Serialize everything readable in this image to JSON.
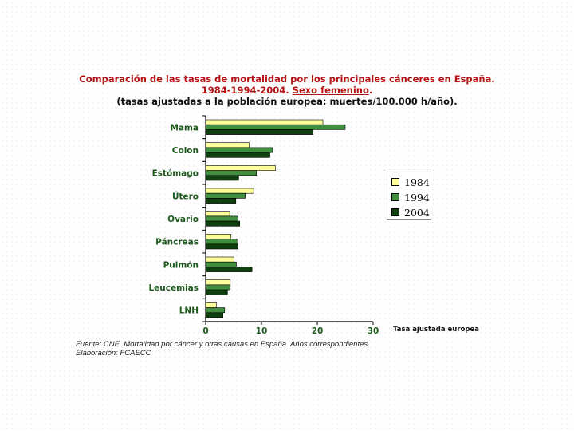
{
  "title": {
    "line1": "Comparación de las tasas de mortalidad por los principales cánceres en España.",
    "line2_prefix": "1984-1994-2004. ",
    "line2_underlined": "Sexo femenino",
    "line2_suffix": ".",
    "line3": "(tasas ajustadas a la población europea: muertes/100.000 h/año)."
  },
  "source": {
    "line1": "Fuente: CNE. Mortalidad por cáncer y otras causas en España. Años correspondientes",
    "line2": "Elaboración: FCAECC"
  },
  "colors": {
    "title_red": "#b41414",
    "label_green": "#1e5a1e",
    "s1984": "#ffff99",
    "s1994": "#3f8f3f",
    "s2004": "#0f3f0f"
  },
  "chart_data": {
    "type": "bar",
    "orientation": "horizontal",
    "categories": [
      "Mama",
      "Colon",
      "Estómago",
      "Útero",
      "Ovario",
      "Páncreas",
      "Pulmón",
      "Leucemias",
      "LNH"
    ],
    "series": [
      {
        "name": "1984",
        "values": [
          21.0,
          7.8,
          12.5,
          8.6,
          4.3,
          4.5,
          5.1,
          4.4,
          1.9
        ]
      },
      {
        "name": "1994",
        "values": [
          25.0,
          12.0,
          9.1,
          7.1,
          5.8,
          5.6,
          5.5,
          4.4,
          3.4
        ]
      },
      {
        "name": "2004",
        "values": [
          19.2,
          11.5,
          5.9,
          5.4,
          6.1,
          5.8,
          8.3,
          3.9,
          3.1
        ]
      }
    ],
    "xlim": [
      0,
      30
    ],
    "xticks": [
      "0",
      "10",
      "20",
      "30"
    ],
    "xlabel": "Tasa ajustada europea",
    "ylabel": "",
    "legend_position": "right",
    "grid": false
  }
}
